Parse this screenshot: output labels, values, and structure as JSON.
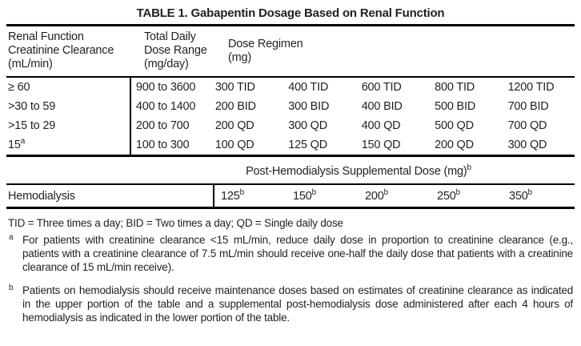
{
  "title": "TABLE 1. Gabapentin Dosage Based on Renal Function",
  "main_table": {
    "headers": {
      "renal": [
        "Renal Function",
        "Creatinine Clearance",
        "(mL/min)"
      ],
      "range": [
        "Total Daily",
        "Dose Range",
        "(mg/day)"
      ],
      "regimen": [
        "Dose Regimen",
        "(mg)"
      ]
    },
    "rows": [
      {
        "renal_function": "≥ 60",
        "dose_range": "900 to 3600",
        "regimens": [
          "300 TID",
          "400 TID",
          "600 TID",
          "800 TID",
          "1200 TID"
        ]
      },
      {
        "renal_function": ">30 to 59",
        "dose_range": "400 to 1400",
        "regimens": [
          "200 BID",
          "300 BID",
          "400 BID",
          "500 BID",
          "700 BID"
        ]
      },
      {
        "renal_function": ">15 to 29",
        "dose_range": "200 to 700",
        "regimens": [
          "200 QD",
          "300 QD",
          "400 QD",
          "500 QD",
          "700 QD"
        ]
      },
      {
        "renal_function": "15",
        "sup": "a",
        "dose_range": "100 to 300",
        "regimens": [
          "100 QD",
          "125 QD",
          "150 QD",
          "200 QD",
          "300 QD"
        ]
      }
    ]
  },
  "supplemental": {
    "header": "Post-Hemodialysis Supplemental Dose (mg)",
    "header_sup": "b",
    "row_label": "Hemodialysis",
    "doses": [
      "125",
      "150",
      "200",
      "250",
      "350"
    ],
    "dose_sup": "b"
  },
  "footnotes": {
    "abbreviations": "TID = Three times a day; BID = Two times a day; QD = Single daily dose",
    "a_marker": "a",
    "a_text": "For patients with creatinine clearance <15 mL/min, reduce daily dose in proportion to creatinine clearance (e.g., patients with a creatinine clearance of 7.5 mL/min should receive one-half the daily dose that patients with a creatinine clearance of 15 mL/min receive).",
    "b_marker": "b",
    "b_text": "Patients on hemodialysis should receive maintenance doses based on estimates of creatinine clearance as indicated in the upper portion of the table and a supplemental post-hemodialysis dose administered after each 4 hours of hemodialysis as indicated in the lower portion of the table."
  },
  "colors": {
    "text": "#231f20",
    "border": "#000000",
    "background": "#ffffff"
  }
}
